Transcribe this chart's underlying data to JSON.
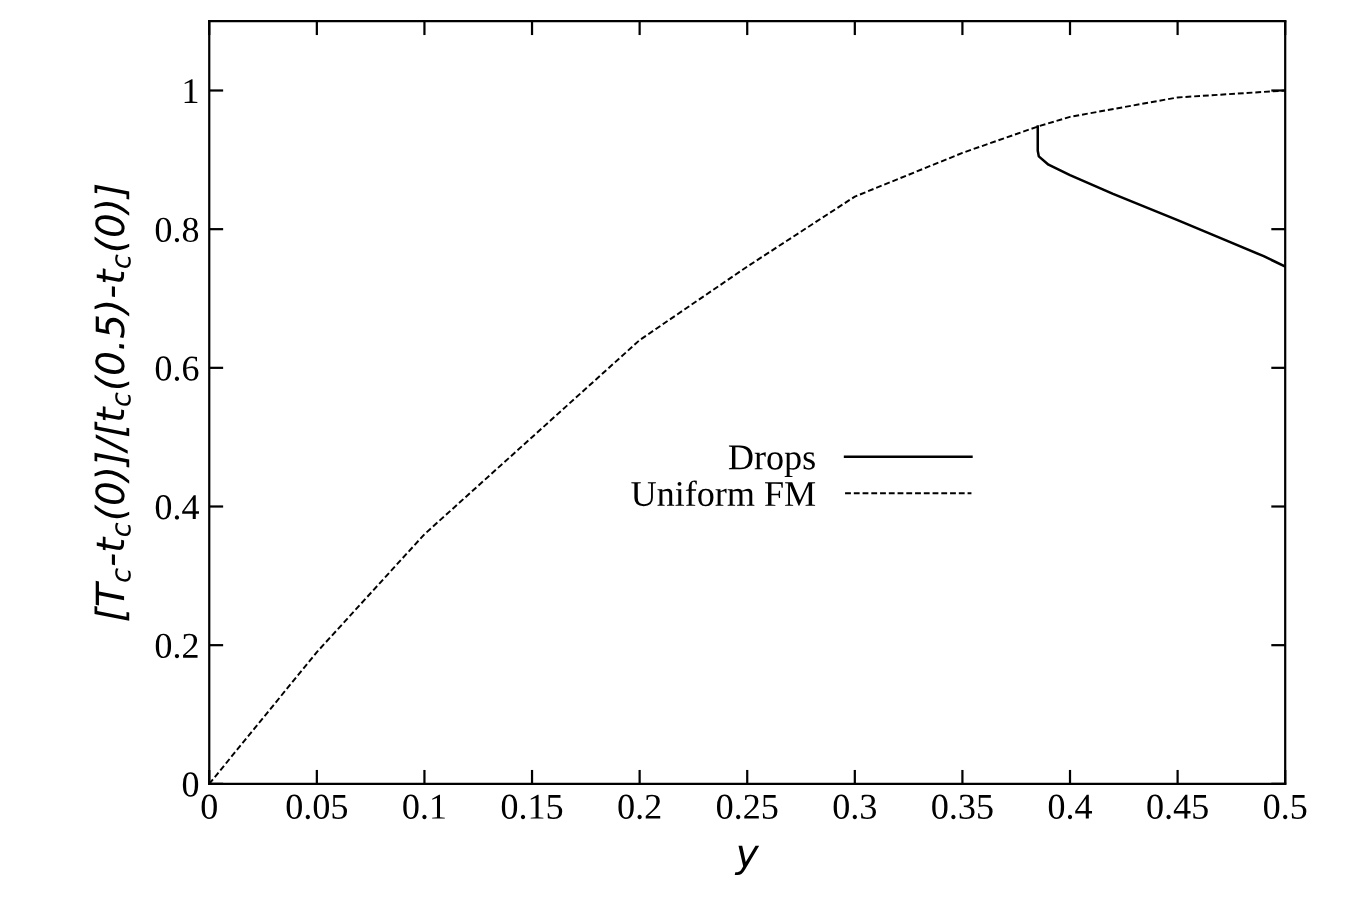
{
  "chart_data": {
    "type": "line",
    "xlabel": "y",
    "ylabel": "[T$_{c}$-t$_{c}$(0)]/[t$_{c}$(0.5)-t$_{c}$(0)]",
    "xlim": [
      0,
      0.5
    ],
    "ylim": [
      0,
      1.1
    ],
    "xticks": [
      0,
      0.05,
      0.1,
      0.15,
      0.2,
      0.25,
      0.3,
      0.35,
      0.4,
      0.45,
      0.5
    ],
    "yticks": [
      0,
      0.2,
      0.4,
      0.6,
      0.8,
      1
    ],
    "grid": false,
    "legend": "center",
    "marker": "none",
    "series": [
      {
        "name": "Drops",
        "color": "#000000",
        "line_style": "solid",
        "x": [
          0.385,
          0.385,
          0.3855,
          0.39,
          0.4,
          0.42,
          0.45,
          0.47,
          0.49,
          0.5
        ],
        "values": [
          0.948,
          0.913,
          0.905,
          0.893,
          0.878,
          0.851,
          0.813,
          0.787,
          0.761,
          0.746
        ]
      },
      {
        "name": "Uniform FM",
        "color": "#000000",
        "line_style": "dashed",
        "x": [
          0,
          0.05,
          0.1,
          0.15,
          0.2,
          0.25,
          0.3,
          0.35,
          0.385,
          0.4,
          0.45,
          0.5
        ],
        "values": [
          0,
          0.19,
          0.36,
          0.5,
          0.64,
          0.746,
          0.847,
          0.91,
          0.948,
          0.962,
          0.99,
          1.0
        ]
      }
    ]
  }
}
